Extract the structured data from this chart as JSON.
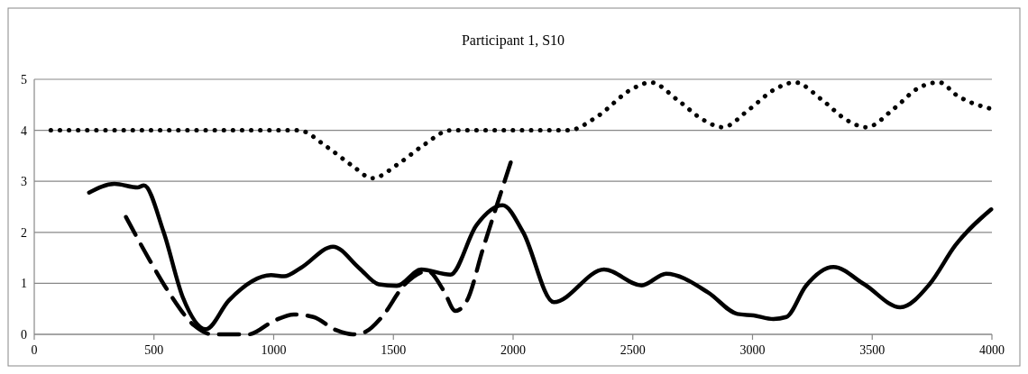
{
  "chart_data": {
    "type": "line",
    "title": "Participant 1, S10",
    "xlim": [
      0,
      4000
    ],
    "xticks": [
      0,
      500,
      1000,
      1500,
      2000,
      2500,
      3000,
      3500,
      4000
    ],
    "ylim": [
      0,
      5
    ],
    "yticks": [
      0,
      1,
      2,
      3,
      4,
      5
    ],
    "grid": "y",
    "series": [
      {
        "color": "#000000",
        "line_style": "solid",
        "x": [
          229,
          335,
          431,
          458,
          540,
          621,
          717,
          812,
          989,
          1044,
          1112,
          1248,
          1357,
          1439,
          1514,
          1616,
          1738,
          1847,
          1956,
          2041,
          2170,
          2380,
          2537,
          2639,
          2815,
          2937,
          3005,
          3087,
          3141,
          3223,
          3338,
          3467,
          3617,
          3739,
          3848,
          3997
        ],
        "values": [
          2.78,
          2.95,
          2.88,
          2.92,
          2.01,
          0.72,
          0.1,
          0.66,
          1.16,
          1.14,
          1.3,
          1.72,
          1.3,
          0.98,
          0.95,
          1.27,
          1.17,
          2.14,
          2.53,
          2.01,
          0.63,
          1.27,
          0.96,
          1.19,
          0.82,
          0.4,
          0.37,
          0.3,
          0.34,
          0.95,
          1.32,
          0.98,
          0.53,
          0.98,
          1.75,
          2.45
        ]
      },
      {
        "color": "#000000",
        "line_style": "dashed",
        "x": [
          383,
          485,
          567,
          669,
          744,
          894,
          1003,
          1084,
          1166,
          1262,
          1330,
          1384,
          1452,
          1548,
          1643,
          1711,
          1759,
          1807,
          1875,
          1943,
          1990
        ],
        "values": [
          2.3,
          1.43,
          0.79,
          0.17,
          0,
          0,
          0.27,
          0.39,
          0.34,
          0.08,
          0,
          0.05,
          0.34,
          0.98,
          1.24,
          0.85,
          0.46,
          0.66,
          1.69,
          2.69,
          3.37
        ]
      },
      {
        "color": "#000000",
        "line_style": "dotted",
        "x": [
          69,
          1105,
          1221,
          1330,
          1412,
          1520,
          1629,
          1738,
          2232,
          2348,
          2497,
          2575,
          2688,
          2796,
          2875,
          2986,
          3095,
          3177,
          3292,
          3394,
          3476,
          3592,
          3693,
          3780,
          3855,
          3997
        ],
        "values": [
          4,
          4,
          3.68,
          3.3,
          3.06,
          3.34,
          3.72,
          4,
          4,
          4.26,
          4.81,
          4.94,
          4.59,
          4.2,
          4.06,
          4.41,
          4.81,
          4.94,
          4.59,
          4.2,
          4.06,
          4.43,
          4.83,
          4.94,
          4.68,
          4.42
        ]
      }
    ]
  }
}
